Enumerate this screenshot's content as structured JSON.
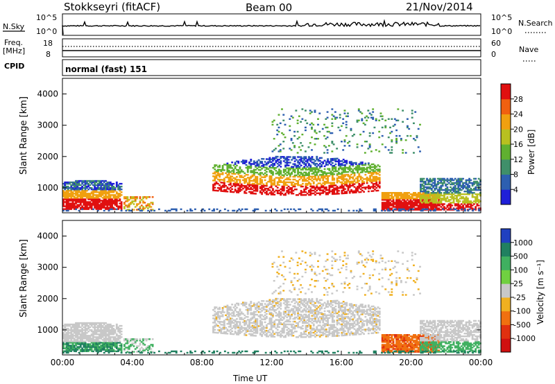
{
  "header": {
    "station": "Stokkseyri (fitACF)",
    "beam": "Beam 00",
    "date": "21/Nov/2014"
  },
  "top_panels": {
    "nsky_label": "N.Sky",
    "nsky_ticks": [
      "10^5",
      "10^0"
    ],
    "nsearch_label": "N.Search",
    "nsearch_ticks": [
      "10^5",
      "10^0"
    ],
    "freq_label_1": "Freq.",
    "freq_label_2": "[MHz]",
    "freq_ticks": [
      "18",
      "8"
    ],
    "nave_label": "Nave",
    "nave_ticks": [
      "60",
      "0"
    ],
    "cpid_label": "CPID",
    "cpid_value": "normal (fast) 151"
  },
  "chart_data": [
    {
      "type": "heatmap",
      "ylabel": "Slant Range [km]",
      "yticks": [
        "1000",
        "2000",
        "3000",
        "4000"
      ],
      "ylim": [
        200,
        4500
      ],
      "xlim_hours": [
        0,
        24
      ],
      "colorbar_label": "Power [dB]",
      "colorbar_ticks": [
        "4",
        "8",
        "12",
        "16",
        "20",
        "24",
        "28"
      ],
      "colorbar_colors": [
        "#1f1fd8",
        "#2d5fb0",
        "#3f8f6a",
        "#60b030",
        "#b8c020",
        "#f0a010",
        "#f06010",
        "#e01010"
      ]
    },
    {
      "type": "heatmap",
      "ylabel": "Slant Range [km]",
      "yticks": [
        "1000",
        "2000",
        "3000",
        "4000"
      ],
      "ylim": [
        200,
        4500
      ],
      "xlim_hours": [
        0,
        24
      ],
      "xlabel": "Time UT",
      "xticks": [
        "00:00",
        "04:00",
        "08:00",
        "12:00",
        "16:00",
        "20:00",
        "00:00"
      ],
      "colorbar_label": "Velocity [m s⁻¹]",
      "colorbar_ticks": [
        "1000",
        "500",
        "100",
        "25",
        "-25",
        "-100",
        "-500",
        "-1000"
      ],
      "colorbar_colors": [
        "#2040c0",
        "#208060",
        "#40b060",
        "#70d040",
        "#c8c8c8",
        "#f0b020",
        "#f07010",
        "#e03010",
        "#d01010"
      ]
    }
  ]
}
